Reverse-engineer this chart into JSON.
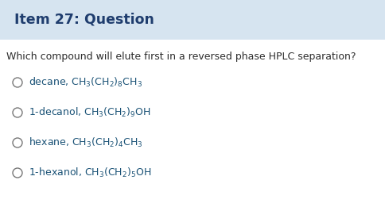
{
  "title": "Item 27: Question",
  "title_bg_color": "#d6e4f0",
  "title_text_color": "#1f3d6e",
  "question": "Which compound will elute first in a reversed phase HPLC separation?",
  "question_color": "#2c2c2c",
  "options_plain": [
    "decane, ",
    "1-decanol, ",
    "hexane, ",
    "1-hexanol, "
  ],
  "options_formula": [
    "CH$_3$(CH$_2$)$_8$CH$_3$",
    "CH$_3$(CH$_2$)$_9$OH",
    "CH$_3$(CH$_2$)$_4$CH$_3$",
    "CH$_3$(CH$_2$)$_5$OH"
  ],
  "option_color": "#1a5276",
  "circle_color": "#777777",
  "bg_color": "#ffffff",
  "fig_width": 4.85,
  "fig_height": 2.56,
  "dpi": 100
}
